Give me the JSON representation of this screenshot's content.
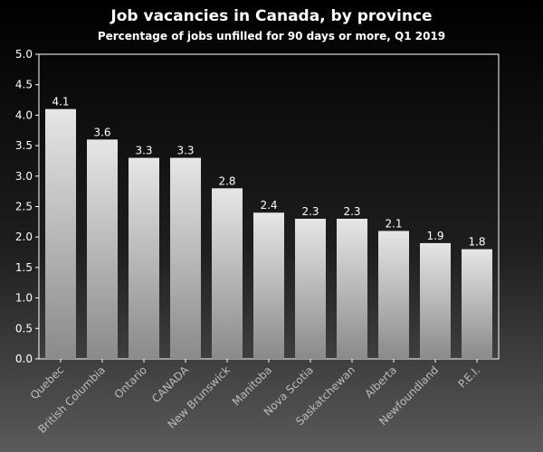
{
  "chart_data": {
    "type": "bar",
    "title": "Job vacancies in Canada, by province",
    "subtitle": "Percentage of jobs unfilled for 90 days or more, Q1 2019",
    "xlabel": "",
    "ylabel": "",
    "categories": [
      "Quebec",
      "British Columbia",
      "Ontario",
      "CANADA",
      "New Brunswick",
      "Manitoba",
      "Nova Scotia",
      "Saskatchewan",
      "Alberta",
      "Newfoundland",
      "P.E.I."
    ],
    "values": [
      4.1,
      3.6,
      3.3,
      3.3,
      2.8,
      2.4,
      2.3,
      2.3,
      2.1,
      1.9,
      1.8
    ],
    "data_labels": [
      "4.1",
      "3.6",
      "3.3",
      "3.3",
      "2.8",
      "2.4",
      "2.3",
      "2.3",
      "2.1",
      "1.9",
      "1.8"
    ],
    "ylim": [
      0,
      5
    ],
    "yticks": [
      "0.0",
      "0.5",
      "1.0",
      "1.5",
      "2.0",
      "2.5",
      "3.0",
      "3.5",
      "4.0",
      "4.5",
      "5.0"
    ],
    "grid": false,
    "legend": "none",
    "colors": {
      "bar_top": "#e6e6e6",
      "bar_bottom": "#8a8a8a",
      "axis": "#ffffff",
      "text": "#ffffff",
      "category_text": "#bdbdbd"
    }
  }
}
